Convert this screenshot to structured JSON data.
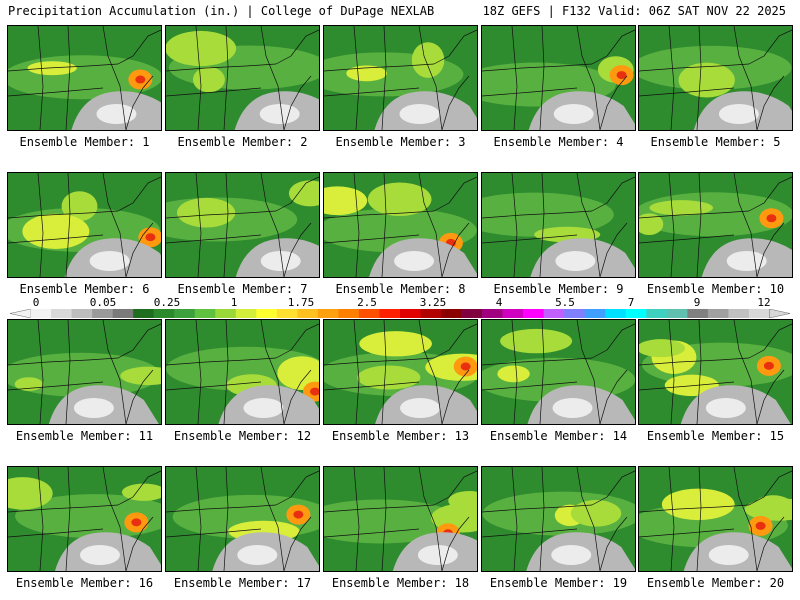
{
  "header": {
    "left": "Precipitation Accumulation (in.) | College of DuPage NEXLAB",
    "right": "18Z GEFS | F132 Valid: 06Z SAT NOV 22 2025"
  },
  "member_label_prefix": "Ensemble Member:",
  "members": [
    1,
    2,
    3,
    4,
    5,
    6,
    7,
    8,
    9,
    10,
    11,
    12,
    13,
    14,
    15,
    16,
    17,
    18,
    19,
    20
  ],
  "colorbar": {
    "labels": [
      "0",
      "0.05",
      "0.25",
      "1",
      "1.75",
      "2.5",
      "3.25",
      "4",
      "5.5",
      "7",
      "9",
      "12"
    ],
    "colors": [
      "#f2f2f2",
      "#d9d9d9",
      "#bdbdbd",
      "#9a9a9a",
      "#7a7a7a",
      "#1f6e1f",
      "#2b8a2b",
      "#3ca03c",
      "#60c040",
      "#9ad83a",
      "#d2ee3a",
      "#ffff30",
      "#ffe030",
      "#ffc020",
      "#ffa010",
      "#ff8000",
      "#ff5000",
      "#ff2000",
      "#e00000",
      "#b00000",
      "#8a0000",
      "#800040",
      "#a00080",
      "#d000c0",
      "#ff00ff",
      "#c060ff",
      "#8080ff",
      "#40a0ff",
      "#00e0ff",
      "#00ffff",
      "#40d0c0",
      "#60c0b0",
      "#808080",
      "#a0a0a0",
      "#c0c0c0",
      "#d8d8d8"
    ]
  }
}
